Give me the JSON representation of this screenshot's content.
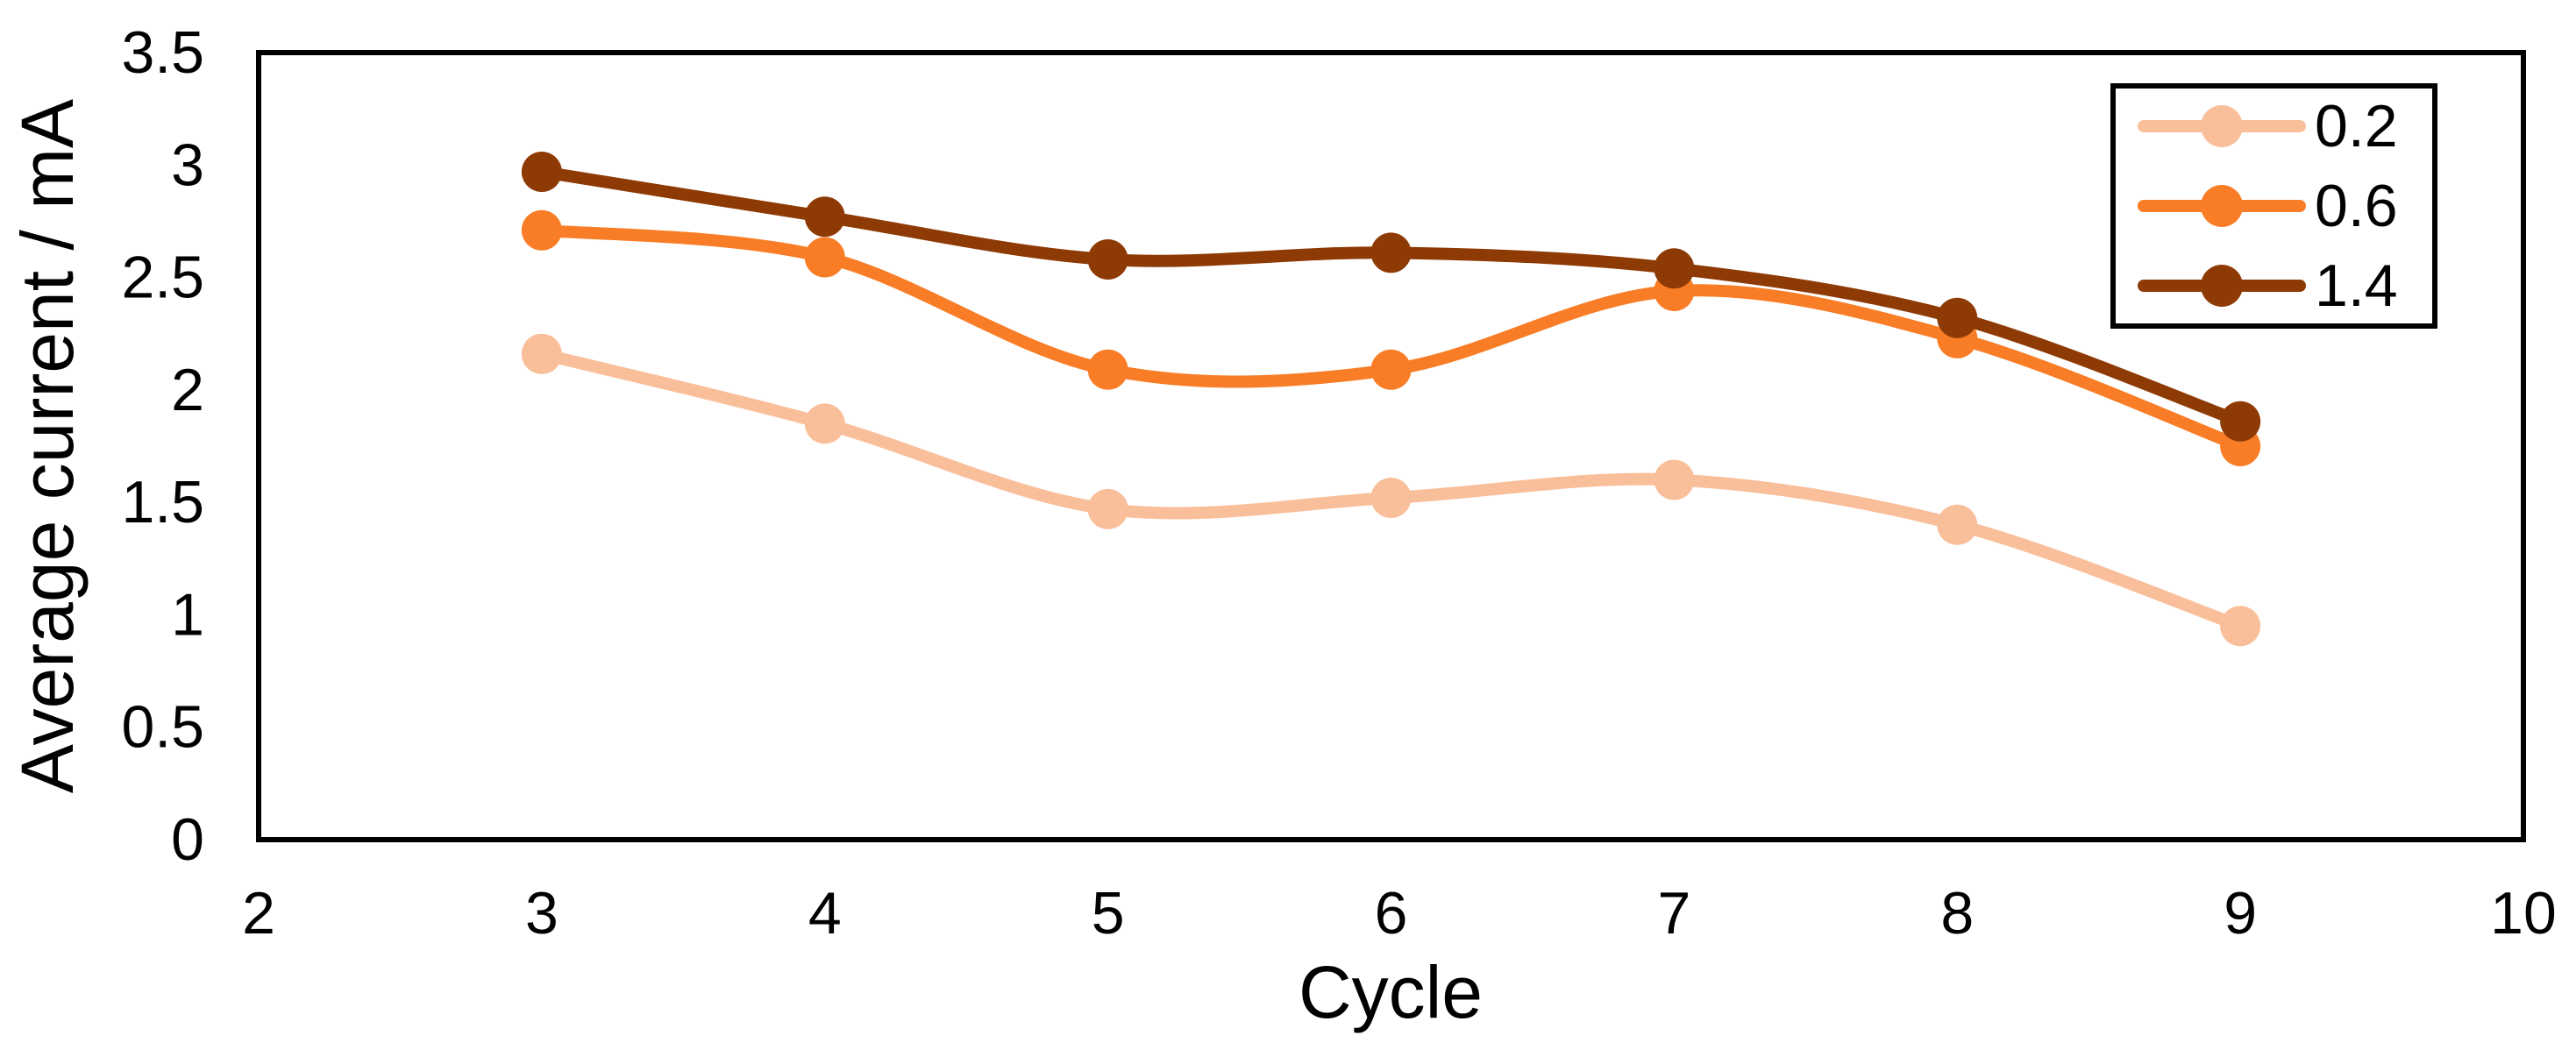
{
  "chart_data": {
    "type": "line",
    "title": "",
    "xlabel": "Cycle",
    "ylabel": "Average current / mA",
    "x": [
      3,
      4,
      5,
      6,
      7,
      8,
      9
    ],
    "series": [
      {
        "name": "0.2",
        "color": "#F9BF9B",
        "values": [
          2.16,
          1.85,
          1.47,
          1.52,
          1.6,
          1.4,
          0.95
        ]
      },
      {
        "name": "0.6",
        "color": "#F87D26",
        "values": [
          2.71,
          2.59,
          2.09,
          2.09,
          2.44,
          2.23,
          1.75
        ]
      },
      {
        "name": "1.4",
        "color": "#8E3A05",
        "values": [
          2.97,
          2.77,
          2.58,
          2.61,
          2.54,
          2.32,
          1.86
        ]
      }
    ],
    "xlim": [
      2,
      10
    ],
    "ylim": [
      0,
      3.5
    ],
    "xtick_labels": [
      "2",
      "3",
      "4",
      "5",
      "6",
      "7",
      "8",
      "9",
      "10"
    ],
    "xticks": [
      2,
      3,
      4,
      5,
      6,
      7,
      8,
      9,
      10
    ],
    "ytick_labels": [
      "0",
      "0.5",
      "1",
      "1.5",
      "2",
      "2.5",
      "3",
      "3.5"
    ],
    "yticks": [
      0,
      0.5,
      1,
      1.5,
      2,
      2.5,
      3,
      3.5
    ],
    "grid": false,
    "line_smooth": true,
    "marker": "circle",
    "legend_position": "top-right",
    "axis_color": "#000000",
    "background": "#FFFFFF"
  }
}
